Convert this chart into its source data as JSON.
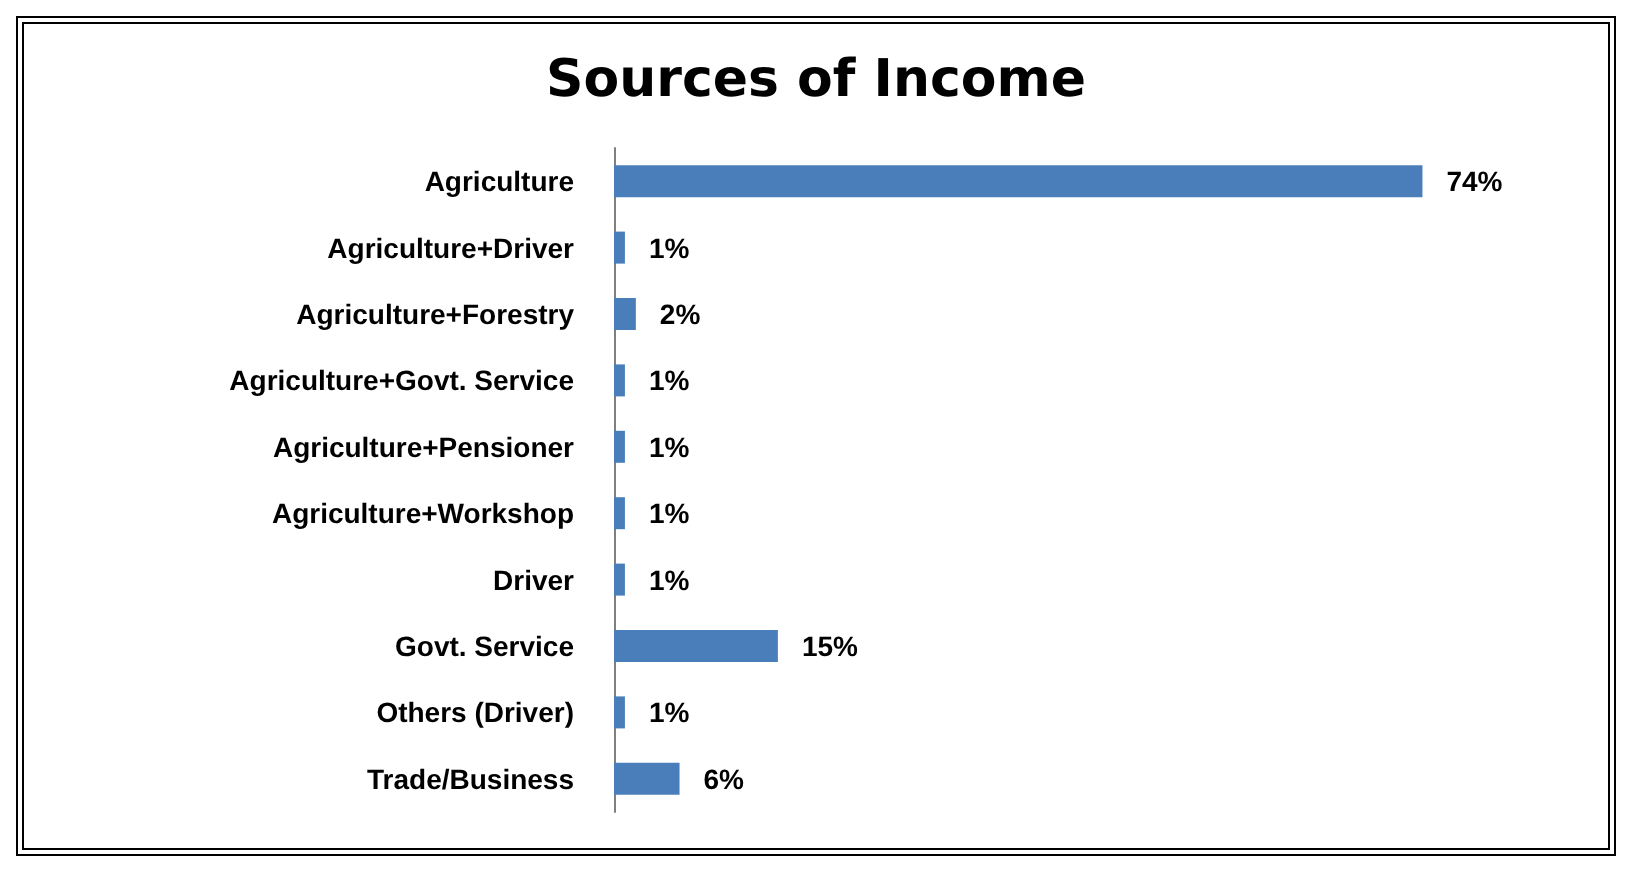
{
  "chart_data": {
    "type": "bar",
    "orientation": "horizontal",
    "title": "Sources of Income",
    "categories": [
      "Agriculture",
      "Agriculture+Driver",
      "Agriculture+Forestry",
      "Agriculture+Govt. Service",
      "Agriculture+Pensioner",
      "Agriculture+Workshop",
      "Driver",
      "Govt. Service",
      "Others (Driver)",
      "Trade/Business"
    ],
    "values": [
      74,
      1,
      2,
      1,
      1,
      1,
      1,
      15,
      1,
      6
    ],
    "value_labels": [
      "74%",
      "1%",
      "2%",
      "1%",
      "1%",
      "1%",
      "1%",
      "15%",
      "1%",
      "6%"
    ],
    "color": "#4a7ebb"
  }
}
